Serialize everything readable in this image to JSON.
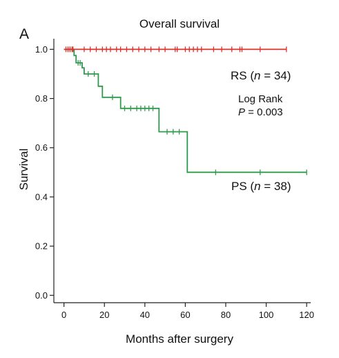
{
  "panel_label": "A",
  "chart_data": {
    "type": "line",
    "title": "Overall survival",
    "xlabel": "Months after surgery",
    "ylabel": "Survival",
    "xlim": [
      -5,
      122
    ],
    "ylim": [
      -0.03,
      1.06
    ],
    "xticks": [
      0,
      20,
      40,
      60,
      80,
      100,
      120
    ],
    "yticks": [
      0.0,
      0.2,
      0.4,
      0.6,
      0.8,
      1.0
    ],
    "xtick_labels": [
      "0",
      "20",
      "40",
      "60",
      "80",
      "100",
      "120"
    ],
    "ytick_labels": [
      "0.0",
      "0.2",
      "0.4",
      "0.6",
      "0.8",
      "1.0"
    ],
    "grid": false,
    "series": [
      {
        "name": "RS",
        "label_html": "RS (n = 34)",
        "label_parts": [
          "RS (",
          "n",
          " = 34)"
        ],
        "color": "#d9302c",
        "step": [
          [
            0,
            1.0
          ],
          [
            110,
            1.0
          ]
        ],
        "censored": [
          1,
          2,
          3,
          4,
          4.5,
          10,
          13,
          16,
          19,
          21,
          23,
          26,
          28,
          31,
          34,
          37,
          40,
          43,
          47,
          50,
          55,
          56,
          60,
          62,
          64,
          66,
          68,
          74,
          78,
          83,
          87,
          88,
          97,
          110
        ]
      },
      {
        "name": "PS",
        "label_parts": [
          "PS (",
          "n",
          " = 38)"
        ],
        "color": "#2e9a4b",
        "step": [
          [
            0,
            1.0
          ],
          [
            5,
            1.0
          ],
          [
            5,
            0.975
          ],
          [
            6,
            0.975
          ],
          [
            6,
            0.945
          ],
          [
            9,
            0.945
          ],
          [
            9,
            0.925
          ],
          [
            10,
            0.925
          ],
          [
            10,
            0.9
          ],
          [
            17,
            0.9
          ],
          [
            17,
            0.85
          ],
          [
            19,
            0.85
          ],
          [
            19,
            0.805
          ],
          [
            28,
            0.805
          ],
          [
            28,
            0.76
          ],
          [
            47,
            0.76
          ],
          [
            47,
            0.665
          ],
          [
            61,
            0.665
          ],
          [
            61,
            0.5
          ],
          [
            120,
            0.5
          ]
        ],
        "censored": [
          [
            2,
            1.0
          ],
          [
            3,
            1.0
          ],
          [
            4,
            1.0
          ],
          [
            7,
            0.945
          ],
          [
            8,
            0.945
          ],
          [
            12,
            0.9
          ],
          [
            15,
            0.9
          ],
          [
            24,
            0.805
          ],
          [
            30,
            0.76
          ],
          [
            33,
            0.76
          ],
          [
            36,
            0.76
          ],
          [
            38,
            0.76
          ],
          [
            40,
            0.76
          ],
          [
            42,
            0.76
          ],
          [
            44,
            0.76
          ],
          [
            51,
            0.665
          ],
          [
            54,
            0.665
          ],
          [
            57,
            0.665
          ],
          [
            75,
            0.5
          ],
          [
            97,
            0.5
          ],
          [
            120,
            0.5
          ]
        ]
      }
    ],
    "annotations": {
      "logrank_label": "Log Rank",
      "p_symbol": "P",
      "p_value": " = 0.003"
    }
  }
}
